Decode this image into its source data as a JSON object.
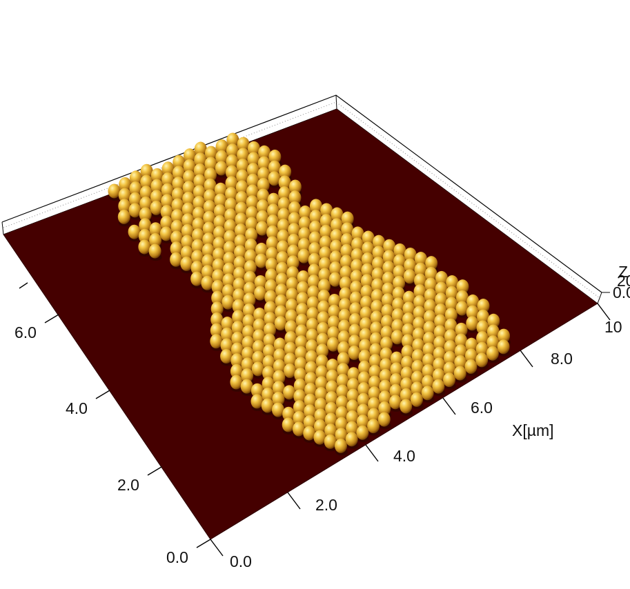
{
  "chart_data": {
    "type": "3d-surface",
    "x_axis": {
      "label": "X[µm]",
      "ticks": [
        "0.0",
        "2.0",
        "4.0",
        "6.0",
        "8.0",
        "10"
      ],
      "range": [
        0,
        10
      ]
    },
    "y_axis": {
      "ticks": [
        "0.0",
        "2.0",
        "4.0",
        "6.0"
      ]
    },
    "z_axis": {
      "label": "Z",
      "ticks": [
        "0.0",
        "20"
      ]
    },
    "surface": {
      "description": "close-packed colloidal monolayer island on flat substrate",
      "substrate_color": "#450000",
      "sphere_color_light": "#ffe37a",
      "sphere_color_mid": "#c9962a",
      "sphere_color_dark": "#6a3c05"
    }
  }
}
